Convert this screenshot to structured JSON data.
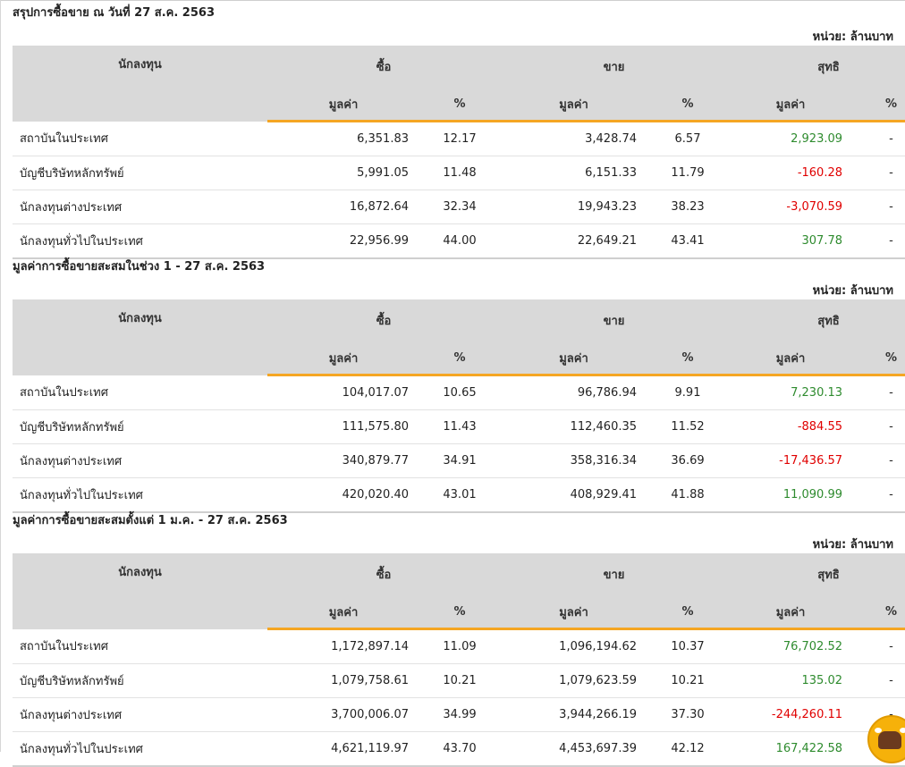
{
  "unit_label": "หน่วย: ล้านบาท",
  "headers": {
    "investor": "นักลงทุน",
    "buy": "ซื้อ",
    "sell": "ขาย",
    "net": "สุทธิ",
    "value": "มูลค่า",
    "pct": "%"
  },
  "sections": [
    {
      "title": "สรุปการซื้อขาย ณ วันที่ 27 ส.ค. 2563",
      "rows": [
        {
          "name": "สถาบันในประเทศ",
          "buy_value": "6,351.83",
          "buy_pct": "12.17",
          "sell_value": "3,428.74",
          "sell_pct": "6.57",
          "net_value": "2,923.09",
          "net_pct": "-",
          "net_sign": "pos"
        },
        {
          "name": "บัญชีบริษัทหลักทรัพย์",
          "buy_value": "5,991.05",
          "buy_pct": "11.48",
          "sell_value": "6,151.33",
          "sell_pct": "11.79",
          "net_value": "-160.28",
          "net_pct": "-",
          "net_sign": "neg"
        },
        {
          "name": "นักลงทุนต่างประเทศ",
          "buy_value": "16,872.64",
          "buy_pct": "32.34",
          "sell_value": "19,943.23",
          "sell_pct": "38.23",
          "net_value": "-3,070.59",
          "net_pct": "-",
          "net_sign": "neg"
        },
        {
          "name": "นักลงทุนทั่วไปในประเทศ",
          "buy_value": "22,956.99",
          "buy_pct": "44.00",
          "sell_value": "22,649.21",
          "sell_pct": "43.41",
          "net_value": "307.78",
          "net_pct": "-",
          "net_sign": "pos"
        }
      ]
    },
    {
      "title": "มูลค่าการซื้อขายสะสมในช่วง 1 - 27 ส.ค. 2563",
      "rows": [
        {
          "name": "สถาบันในประเทศ",
          "buy_value": "104,017.07",
          "buy_pct": "10.65",
          "sell_value": "96,786.94",
          "sell_pct": "9.91",
          "net_value": "7,230.13",
          "net_pct": "-",
          "net_sign": "pos"
        },
        {
          "name": "บัญชีบริษัทหลักทรัพย์",
          "buy_value": "111,575.80",
          "buy_pct": "11.43",
          "sell_value": "112,460.35",
          "sell_pct": "11.52",
          "net_value": "-884.55",
          "net_pct": "-",
          "net_sign": "neg"
        },
        {
          "name": "นักลงทุนต่างประเทศ",
          "buy_value": "340,879.77",
          "buy_pct": "34.91",
          "sell_value": "358,316.34",
          "sell_pct": "36.69",
          "net_value": "-17,436.57",
          "net_pct": "-",
          "net_sign": "neg"
        },
        {
          "name": "นักลงทุนทั่วไปในประเทศ",
          "buy_value": "420,020.40",
          "buy_pct": "43.01",
          "sell_value": "408,929.41",
          "sell_pct": "41.88",
          "net_value": "11,090.99",
          "net_pct": "-",
          "net_sign": "pos"
        }
      ]
    },
    {
      "title": "มูลค่าการซื้อขายสะสมตั้งแต่ 1 ม.ค. - 27 ส.ค. 2563",
      "rows": [
        {
          "name": "สถาบันในประเทศ",
          "buy_value": "1,172,897.14",
          "buy_pct": "11.09",
          "sell_value": "1,096,194.62",
          "sell_pct": "10.37",
          "net_value": "76,702.52",
          "net_pct": "-",
          "net_sign": "pos"
        },
        {
          "name": "บัญชีบริษัทหลักทรัพย์",
          "buy_value": "1,079,758.61",
          "buy_pct": "10.21",
          "sell_value": "1,079,623.59",
          "sell_pct": "10.21",
          "net_value": "135.02",
          "net_pct": "-",
          "net_sign": "pos"
        },
        {
          "name": "นักลงทุนต่างประเทศ",
          "buy_value": "3,700,006.07",
          "buy_pct": "34.99",
          "sell_value": "3,944,266.19",
          "sell_pct": "37.30",
          "net_value": "-244,260.11",
          "net_pct": "-",
          "net_sign": "neg"
        },
        {
          "name": "นักลงทุนทั่วไปในประเทศ",
          "buy_value": "4,621,119.97",
          "buy_pct": "43.70",
          "sell_value": "4,453,697.39",
          "sell_pct": "42.12",
          "net_value": "167,422.58",
          "net_pct": "-",
          "net_sign": "pos"
        }
      ]
    }
  ],
  "colors": {
    "positive": "#2e8b2e",
    "negative": "#e00000",
    "accent": "#f5a623",
    "header_bg": "#d9d9d9"
  },
  "mascot_icon": "bull-mascot-icon"
}
